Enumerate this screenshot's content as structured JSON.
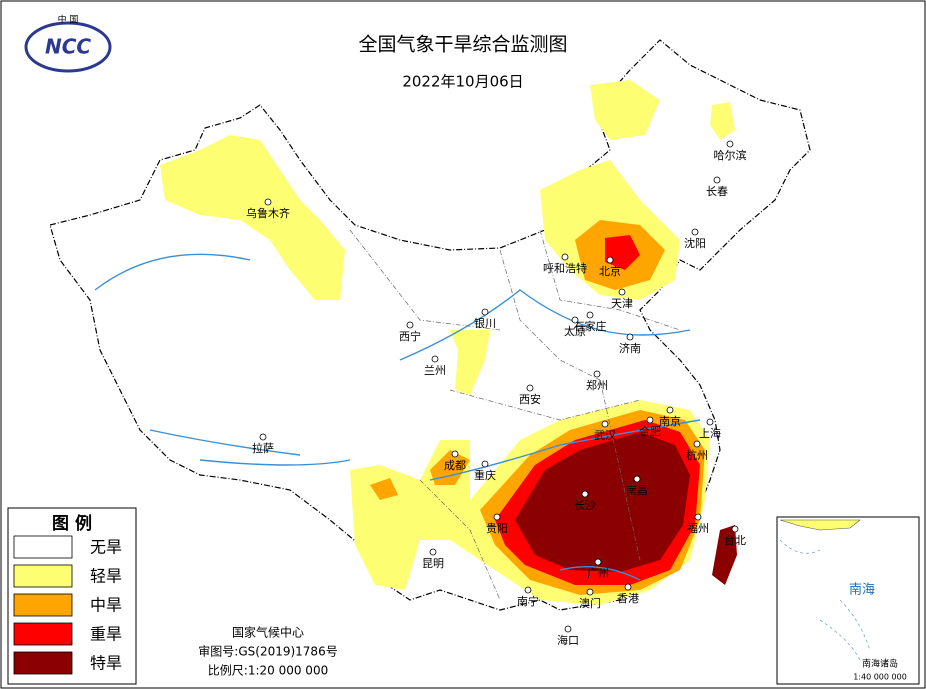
{
  "header": {
    "title": "全国气象干旱综合监测图",
    "date": "2022年10月06日"
  },
  "logo": {
    "country": "中 国",
    "text": "NCC"
  },
  "legend": {
    "title": "图 例",
    "items": [
      {
        "label": "无旱",
        "color": "#ffffff"
      },
      {
        "label": "轻旱",
        "color": "#fefe73"
      },
      {
        "label": "中旱",
        "color": "#fea500"
      },
      {
        "label": "重旱",
        "color": "#fe0000"
      },
      {
        "label": "特旱",
        "color": "#8b0000"
      }
    ]
  },
  "footer": {
    "agency": "国家气候中心",
    "approval": "审图号:GS(2019)1786号",
    "scale": "比例尺:1:20 000 000"
  },
  "cities": [
    "哈尔滨",
    "长春",
    "沈阳",
    "北京",
    "天津",
    "呼和浩特",
    "石家庄",
    "太原",
    "济南",
    "银川",
    "西宁",
    "兰州",
    "郑州",
    "西安",
    "南京",
    "合肥",
    "上海",
    "武汉",
    "杭州",
    "成都",
    "重庆",
    "长沙",
    "南昌",
    "福州",
    "台北",
    "贵阳",
    "昆明",
    "广州",
    "南宁",
    "澳门",
    "香港",
    "海口",
    "拉萨",
    "乌鲁木齐"
  ],
  "inset": {
    "sea": "南海",
    "label": "南海诸岛",
    "scale": "1:40 000 000"
  }
}
